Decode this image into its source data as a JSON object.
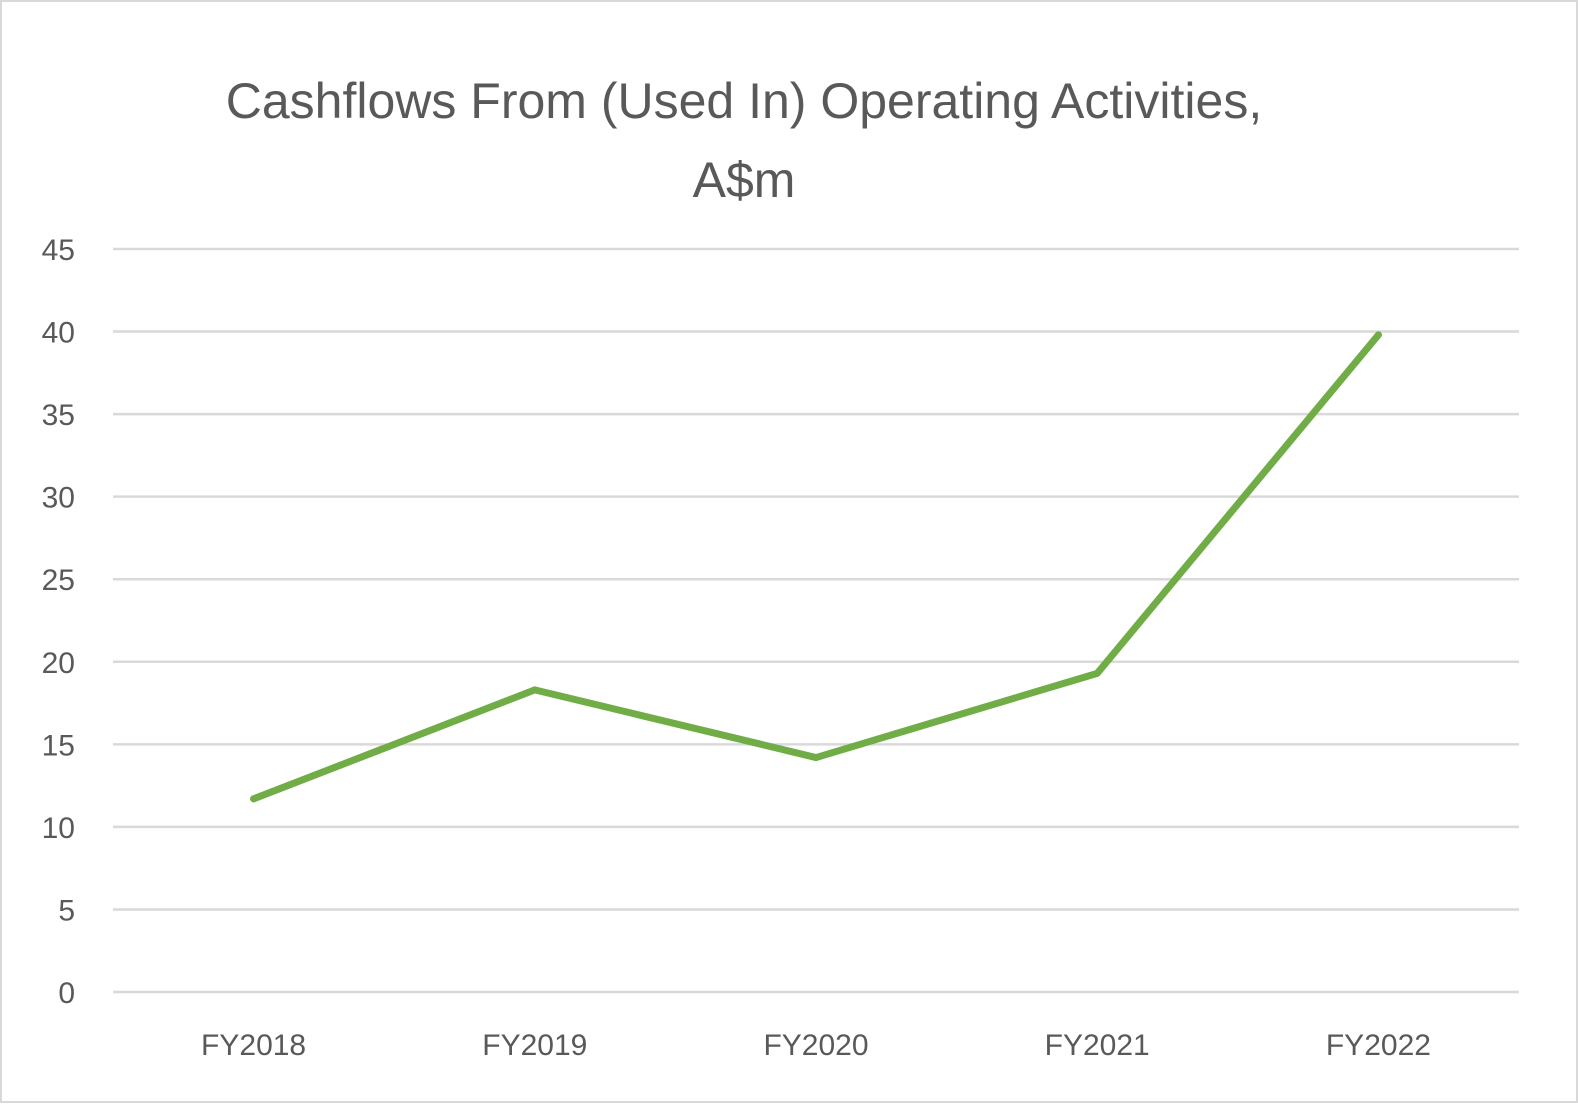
{
  "chart_data": {
    "type": "line",
    "title": "Cashflows From (Used In) Operating Activities,",
    "subtitle": "A$m",
    "xlabel": "",
    "ylabel": "",
    "categories": [
      "FY2018",
      "FY2019",
      "FY2020",
      "FY2021",
      "FY2022"
    ],
    "series": [
      {
        "values": [
          11.7,
          18.3,
          14.2,
          19.3,
          39.8
        ]
      }
    ],
    "ylim": [
      0,
      45
    ],
    "yticks": [
      "0",
      "5",
      "10",
      "15",
      "20",
      "25",
      "30",
      "35",
      "40",
      "45"
    ],
    "grid": true,
    "legend": "none",
    "colors": {
      "line": "#70ad47",
      "grid": "#d9d9d9",
      "text": "#595959",
      "border": "#d9d9d9"
    }
  }
}
